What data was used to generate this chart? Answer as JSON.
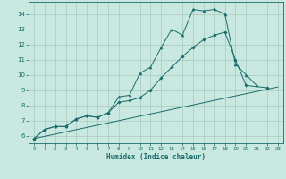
{
  "xlabel": "Humidex (Indice chaleur)",
  "xlim": [
    -0.5,
    23.5
  ],
  "ylim": [
    5.5,
    14.8
  ],
  "xticks": [
    0,
    1,
    2,
    3,
    4,
    5,
    6,
    7,
    8,
    9,
    10,
    11,
    12,
    13,
    14,
    15,
    16,
    17,
    18,
    19,
    20,
    21,
    22,
    23
  ],
  "yticks": [
    6,
    7,
    8,
    9,
    10,
    11,
    12,
    13,
    14
  ],
  "bg_color": "#c8e8e0",
  "grid_color": "#a8c8c0",
  "line_color": "#1a6b6b",
  "line1_x": [
    0,
    1,
    2,
    3,
    4,
    5,
    6,
    7,
    8,
    9,
    10,
    11,
    12,
    13,
    14,
    15,
    16,
    17,
    18,
    19,
    20,
    21
  ],
  "line1_y": [
    5.8,
    6.4,
    6.6,
    6.6,
    7.1,
    7.3,
    7.2,
    7.5,
    8.55,
    8.65,
    10.1,
    10.5,
    11.8,
    13.0,
    12.6,
    14.3,
    14.2,
    14.3,
    14.0,
    10.7,
    10.0,
    9.3
  ],
  "line2_x": [
    0,
    1,
    2,
    3,
    4,
    5,
    6,
    7,
    8,
    9,
    10,
    11,
    12,
    13,
    14,
    15,
    16,
    17,
    18,
    19,
    20,
    22
  ],
  "line2_y": [
    5.8,
    6.4,
    6.6,
    6.6,
    7.1,
    7.3,
    7.2,
    7.5,
    8.2,
    8.3,
    8.5,
    9.0,
    9.8,
    10.5,
    11.2,
    11.8,
    12.3,
    12.6,
    12.8,
    11.0,
    9.3,
    9.15
  ],
  "line3_x": [
    0,
    23
  ],
  "line3_y": [
    5.8,
    9.2
  ]
}
